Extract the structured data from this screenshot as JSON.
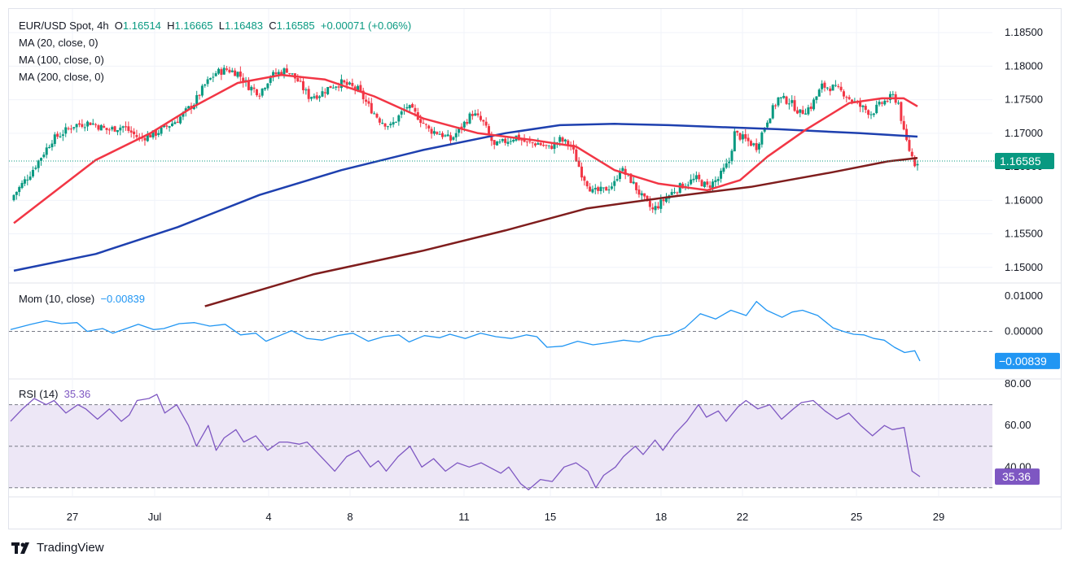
{
  "header": {
    "symbol": "EUR/USD Spot, 4h",
    "o_label": "O",
    "o_value": "1.16514",
    "h_label": "H",
    "h_value": "1.16665",
    "l_label": "L",
    "l_value": "1.16483",
    "c_label": "C",
    "c_value": "1.16585",
    "change": "+0.00071 (+0.06%)"
  },
  "indicators": {
    "ma20": "MA (20, close, 0)",
    "ma100": "MA (100, close, 0)",
    "ma200": "MA (200, close, 0)",
    "mom_label": "Mom (10, close)",
    "mom_value": "−0.00839",
    "rsi_label": "RSI (14)",
    "rsi_value": "35.36"
  },
  "branding": {
    "name": "TradingView"
  },
  "colors": {
    "up": "#089981",
    "down": "#f23645",
    "ma20": "#f23645",
    "ma100": "#1e40af",
    "ma200": "#7f1d1d",
    "mom": "#2196f3",
    "rsi": "#7e57c2",
    "rsi_band": "#ede7f6",
    "grid": "#f0f3fa",
    "axis_text": "#131722"
  },
  "chart_data": [
    {
      "type": "candlestick",
      "title": "EUR/USD Spot, 4h",
      "x_ticks": [
        "27",
        "Jul",
        "4",
        "8",
        "11",
        "15",
        "18",
        "22",
        "25",
        "29"
      ],
      "y_ticks": [
        "1.18500",
        "1.18000",
        "1.17500",
        "1.17000",
        "1.16500",
        "1.16000",
        "1.15500",
        "1.15000"
      ],
      "ylim": [
        1.1484,
        1.1878
      ],
      "last_price": "1.16585",
      "last_price_value": 1.16585,
      "close_path": [
        [
          0,
          1.1608
        ],
        [
          6,
          1.164
        ],
        [
          14,
          1.169
        ],
        [
          22,
          1.1712
        ],
        [
          28,
          1.1716
        ],
        [
          34,
          1.1705
        ],
        [
          40,
          1.171
        ],
        [
          46,
          1.1692
        ],
        [
          52,
          1.17
        ],
        [
          60,
          1.172
        ],
        [
          66,
          1.1745
        ],
        [
          70,
          1.1772
        ],
        [
          74,
          1.179
        ],
        [
          78,
          1.1795
        ],
        [
          82,
          1.179
        ],
        [
          86,
          1.177
        ],
        [
          90,
          1.176
        ],
        [
          94,
          1.1785
        ],
        [
          100,
          1.1795
        ],
        [
          104,
          1.1778
        ],
        [
          108,
          1.1755
        ],
        [
          112,
          1.1758
        ],
        [
          116,
          1.177
        ],
        [
          120,
          1.1775
        ],
        [
          126,
          1.1765
        ],
        [
          130,
          1.174
        ],
        [
          134,
          1.172
        ],
        [
          138,
          1.171
        ],
        [
          144,
          1.174
        ],
        [
          148,
          1.1725
        ],
        [
          152,
          1.1705
        ],
        [
          156,
          1.17
        ],
        [
          160,
          1.169
        ],
        [
          164,
          1.171
        ],
        [
          168,
          1.173
        ],
        [
          172,
          1.1715
        ],
        [
          176,
          1.168
        ],
        [
          180,
          1.1688
        ],
        [
          184,
          1.1695
        ],
        [
          188,
          1.1685
        ],
        [
          192,
          1.1685
        ],
        [
          196,
          1.1678
        ],
        [
          200,
          1.169
        ],
        [
          204,
          1.1682
        ],
        [
          208,
          1.164
        ],
        [
          212,
          1.1612
        ],
        [
          216,
          1.1615
        ],
        [
          220,
          1.1625
        ],
        [
          222,
          1.1648
        ],
        [
          226,
          1.163
        ],
        [
          230,
          1.1605
        ],
        [
          234,
          1.1585
        ],
        [
          238,
          1.16
        ],
        [
          242,
          1.1615
        ],
        [
          246,
          1.1625
        ],
        [
          250,
          1.1632
        ],
        [
          254,
          1.162
        ],
        [
          258,
          1.1632
        ],
        [
          262,
          1.1658
        ],
        [
          264,
          1.17
        ],
        [
          268,
          1.169
        ],
        [
          272,
          1.168
        ],
        [
          276,
          1.172
        ],
        [
          280,
          1.1752
        ],
        [
          284,
          1.1748
        ],
        [
          288,
          1.173
        ],
        [
          292,
          1.174
        ],
        [
          296,
          1.177
        ],
        [
          300,
          1.1768
        ],
        [
          304,
          1.176
        ],
        [
          306,
          1.1752
        ],
        [
          310,
          1.174
        ],
        [
          314,
          1.173
        ],
        [
          318,
          1.1745
        ],
        [
          322,
          1.1755
        ],
        [
          324,
          1.1745
        ],
        [
          326,
          1.17
        ],
        [
          328,
          1.1675
        ],
        [
          330,
          1.1655
        ],
        [
          331,
          1.16585
        ]
      ],
      "ma20_path": [
        [
          0,
          1.1566
        ],
        [
          14,
          1.161
        ],
        [
          30,
          1.166
        ],
        [
          50,
          1.17
        ],
        [
          66,
          1.174
        ],
        [
          82,
          1.1775
        ],
        [
          98,
          1.1787
        ],
        [
          114,
          1.178
        ],
        [
          132,
          1.1755
        ],
        [
          150,
          1.1722
        ],
        [
          170,
          1.17
        ],
        [
          190,
          1.169
        ],
        [
          206,
          1.168
        ],
        [
          220,
          1.1645
        ],
        [
          236,
          1.1625
        ],
        [
          254,
          1.1615
        ],
        [
          266,
          1.163
        ],
        [
          276,
          1.1665
        ],
        [
          290,
          1.1705
        ],
        [
          306,
          1.1745
        ],
        [
          318,
          1.1752
        ],
        [
          326,
          1.1752
        ],
        [
          331,
          1.174
        ]
      ],
      "ma100_path": [
        [
          0,
          1.1495
        ],
        [
          30,
          1.152
        ],
        [
          60,
          1.156
        ],
        [
          90,
          1.1608
        ],
        [
          120,
          1.1645
        ],
        [
          150,
          1.1675
        ],
        [
          180,
          1.17
        ],
        [
          200,
          1.1712
        ],
        [
          220,
          1.1714
        ],
        [
          240,
          1.1712
        ],
        [
          280,
          1.1706
        ],
        [
          310,
          1.17
        ],
        [
          331,
          1.1695
        ]
      ],
      "ma200_path": [
        [
          70,
          1.1442
        ],
        [
          110,
          1.149
        ],
        [
          150,
          1.1525
        ],
        [
          180,
          1.1555
        ],
        [
          210,
          1.1588
        ],
        [
          240,
          1.1605
        ],
        [
          270,
          1.162
        ],
        [
          300,
          1.1642
        ],
        [
          320,
          1.1658
        ],
        [
          331,
          1.1663
        ]
      ]
    },
    {
      "type": "line",
      "title": "Mom (10, close)",
      "y_ticks": [
        "0.01000",
        "0.00000"
      ],
      "ylim": [
        -0.0135,
        0.0135
      ],
      "last_value": "−0.00839",
      "last_value_num": -0.00839,
      "series": [
        [
          0,
          0.0005
        ],
        [
          8,
          0.002
        ],
        [
          14,
          0.003
        ],
        [
          20,
          0.0022
        ],
        [
          26,
          0.0025
        ],
        [
          30,
          0.0
        ],
        [
          36,
          0.0008
        ],
        [
          40,
          -0.0005
        ],
        [
          46,
          0.001
        ],
        [
          50,
          0.002
        ],
        [
          56,
          0.0005
        ],
        [
          60,
          0.0008
        ],
        [
          66,
          0.0022
        ],
        [
          72,
          0.0025
        ],
        [
          78,
          0.0015
        ],
        [
          84,
          0.002
        ],
        [
          90,
          -0.001
        ],
        [
          96,
          -0.0005
        ],
        [
          100,
          -0.0028
        ],
        [
          106,
          -0.001
        ],
        [
          110,
          0.0002
        ],
        [
          116,
          -0.002
        ],
        [
          122,
          -0.0025
        ],
        [
          128,
          -0.0012
        ],
        [
          134,
          -0.0005
        ],
        [
          140,
          -0.0028
        ],
        [
          146,
          -0.0015
        ],
        [
          152,
          -0.001
        ],
        [
          156,
          -0.003
        ],
        [
          162,
          -0.0012
        ],
        [
          168,
          -0.0018
        ],
        [
          172,
          -0.0008
        ],
        [
          178,
          -0.002
        ],
        [
          184,
          -0.0005
        ],
        [
          190,
          -0.0015
        ],
        [
          196,
          -0.002
        ],
        [
          202,
          -0.001
        ],
        [
          206,
          -0.0015
        ],
        [
          210,
          -0.0045
        ],
        [
          216,
          -0.0042
        ],
        [
          222,
          -0.0028
        ],
        [
          228,
          -0.0038
        ],
        [
          234,
          -0.0032
        ],
        [
          240,
          -0.0025
        ],
        [
          246,
          -0.003
        ],
        [
          252,
          -0.0015
        ],
        [
          258,
          -0.001
        ],
        [
          264,
          0.001
        ],
        [
          270,
          0.005
        ],
        [
          276,
          0.0035
        ],
        [
          282,
          0.006
        ],
        [
          288,
          0.0045
        ],
        [
          292,
          0.0085
        ],
        [
          296,
          0.006
        ],
        [
          302,
          0.004
        ],
        [
          306,
          0.0055
        ],
        [
          310,
          0.006
        ],
        [
          316,
          0.0045
        ],
        [
          322,
          0.001
        ],
        [
          326,
          0.0
        ],
        [
          330,
          -0.0008
        ],
        [
          334,
          -0.001
        ],
        [
          338,
          -0.002
        ],
        [
          342,
          -0.0025
        ],
        [
          346,
          -0.0045
        ],
        [
          350,
          -0.006
        ],
        [
          354,
          -0.0055
        ],
        [
          356,
          -0.00839
        ]
      ]
    },
    {
      "type": "line",
      "title": "RSI (14)",
      "y_ticks": [
        "80.00",
        "60.00",
        "40.00"
      ],
      "ylim": [
        26,
        82
      ],
      "bands": [
        30,
        50,
        70
      ],
      "last_value": "35.36",
      "last_value_num": 35.36,
      "series": [
        [
          0,
          62
        ],
        [
          6,
          68
        ],
        [
          12,
          73
        ],
        [
          18,
          70
        ],
        [
          22,
          72
        ],
        [
          28,
          66
        ],
        [
          34,
          70
        ],
        [
          38,
          68
        ],
        [
          44,
          63
        ],
        [
          50,
          68
        ],
        [
          56,
          62
        ],
        [
          60,
          65
        ],
        [
          64,
          72
        ],
        [
          70,
          73
        ],
        [
          74,
          75
        ],
        [
          78,
          66
        ],
        [
          84,
          70
        ],
        [
          90,
          60
        ],
        [
          94,
          50
        ],
        [
          100,
          60
        ],
        [
          104,
          48
        ],
        [
          108,
          54
        ],
        [
          114,
          58
        ],
        [
          118,
          52
        ],
        [
          124,
          55
        ],
        [
          130,
          48
        ],
        [
          136,
          52
        ],
        [
          140,
          52
        ],
        [
          146,
          51
        ],
        [
          150,
          52
        ],
        [
          154,
          48
        ],
        [
          160,
          42
        ],
        [
          164,
          38
        ],
        [
          170,
          45
        ],
        [
          176,
          48
        ],
        [
          182,
          40
        ],
        [
          186,
          43
        ],
        [
          190,
          38
        ],
        [
          196,
          45
        ],
        [
          202,
          50
        ],
        [
          208,
          40
        ],
        [
          214,
          44
        ],
        [
          220,
          38
        ],
        [
          226,
          42
        ],
        [
          232,
          40
        ],
        [
          238,
          42
        ],
        [
          244,
          39
        ],
        [
          248,
          37
        ],
        [
          252,
          40
        ],
        [
          258,
          32
        ],
        [
          262,
          29
        ],
        [
          268,
          34
        ],
        [
          274,
          33
        ],
        [
          280,
          40
        ],
        [
          286,
          42
        ],
        [
          292,
          38
        ],
        [
          296,
          30
        ],
        [
          300,
          36
        ],
        [
          306,
          40
        ],
        [
          310,
          45
        ],
        [
          316,
          50
        ],
        [
          320,
          46
        ],
        [
          326,
          53
        ],
        [
          330,
          48
        ],
        [
          336,
          56
        ],
        [
          342,
          62
        ],
        [
          348,
          70
        ],
        [
          352,
          64
        ],
        [
          358,
          67
        ],
        [
          362,
          62
        ],
        [
          368,
          69
        ],
        [
          372,
          72
        ],
        [
          378,
          68
        ],
        [
          384,
          70
        ],
        [
          390,
          63
        ],
        [
          396,
          68
        ],
        [
          400,
          71
        ],
        [
          406,
          72
        ],
        [
          412,
          67
        ],
        [
          418,
          63
        ],
        [
          424,
          66
        ],
        [
          430,
          60
        ],
        [
          436,
          55
        ],
        [
          442,
          60
        ],
        [
          446,
          58
        ],
        [
          452,
          59
        ],
        [
          456,
          38
        ],
        [
          460,
          35.36
        ]
      ]
    }
  ]
}
